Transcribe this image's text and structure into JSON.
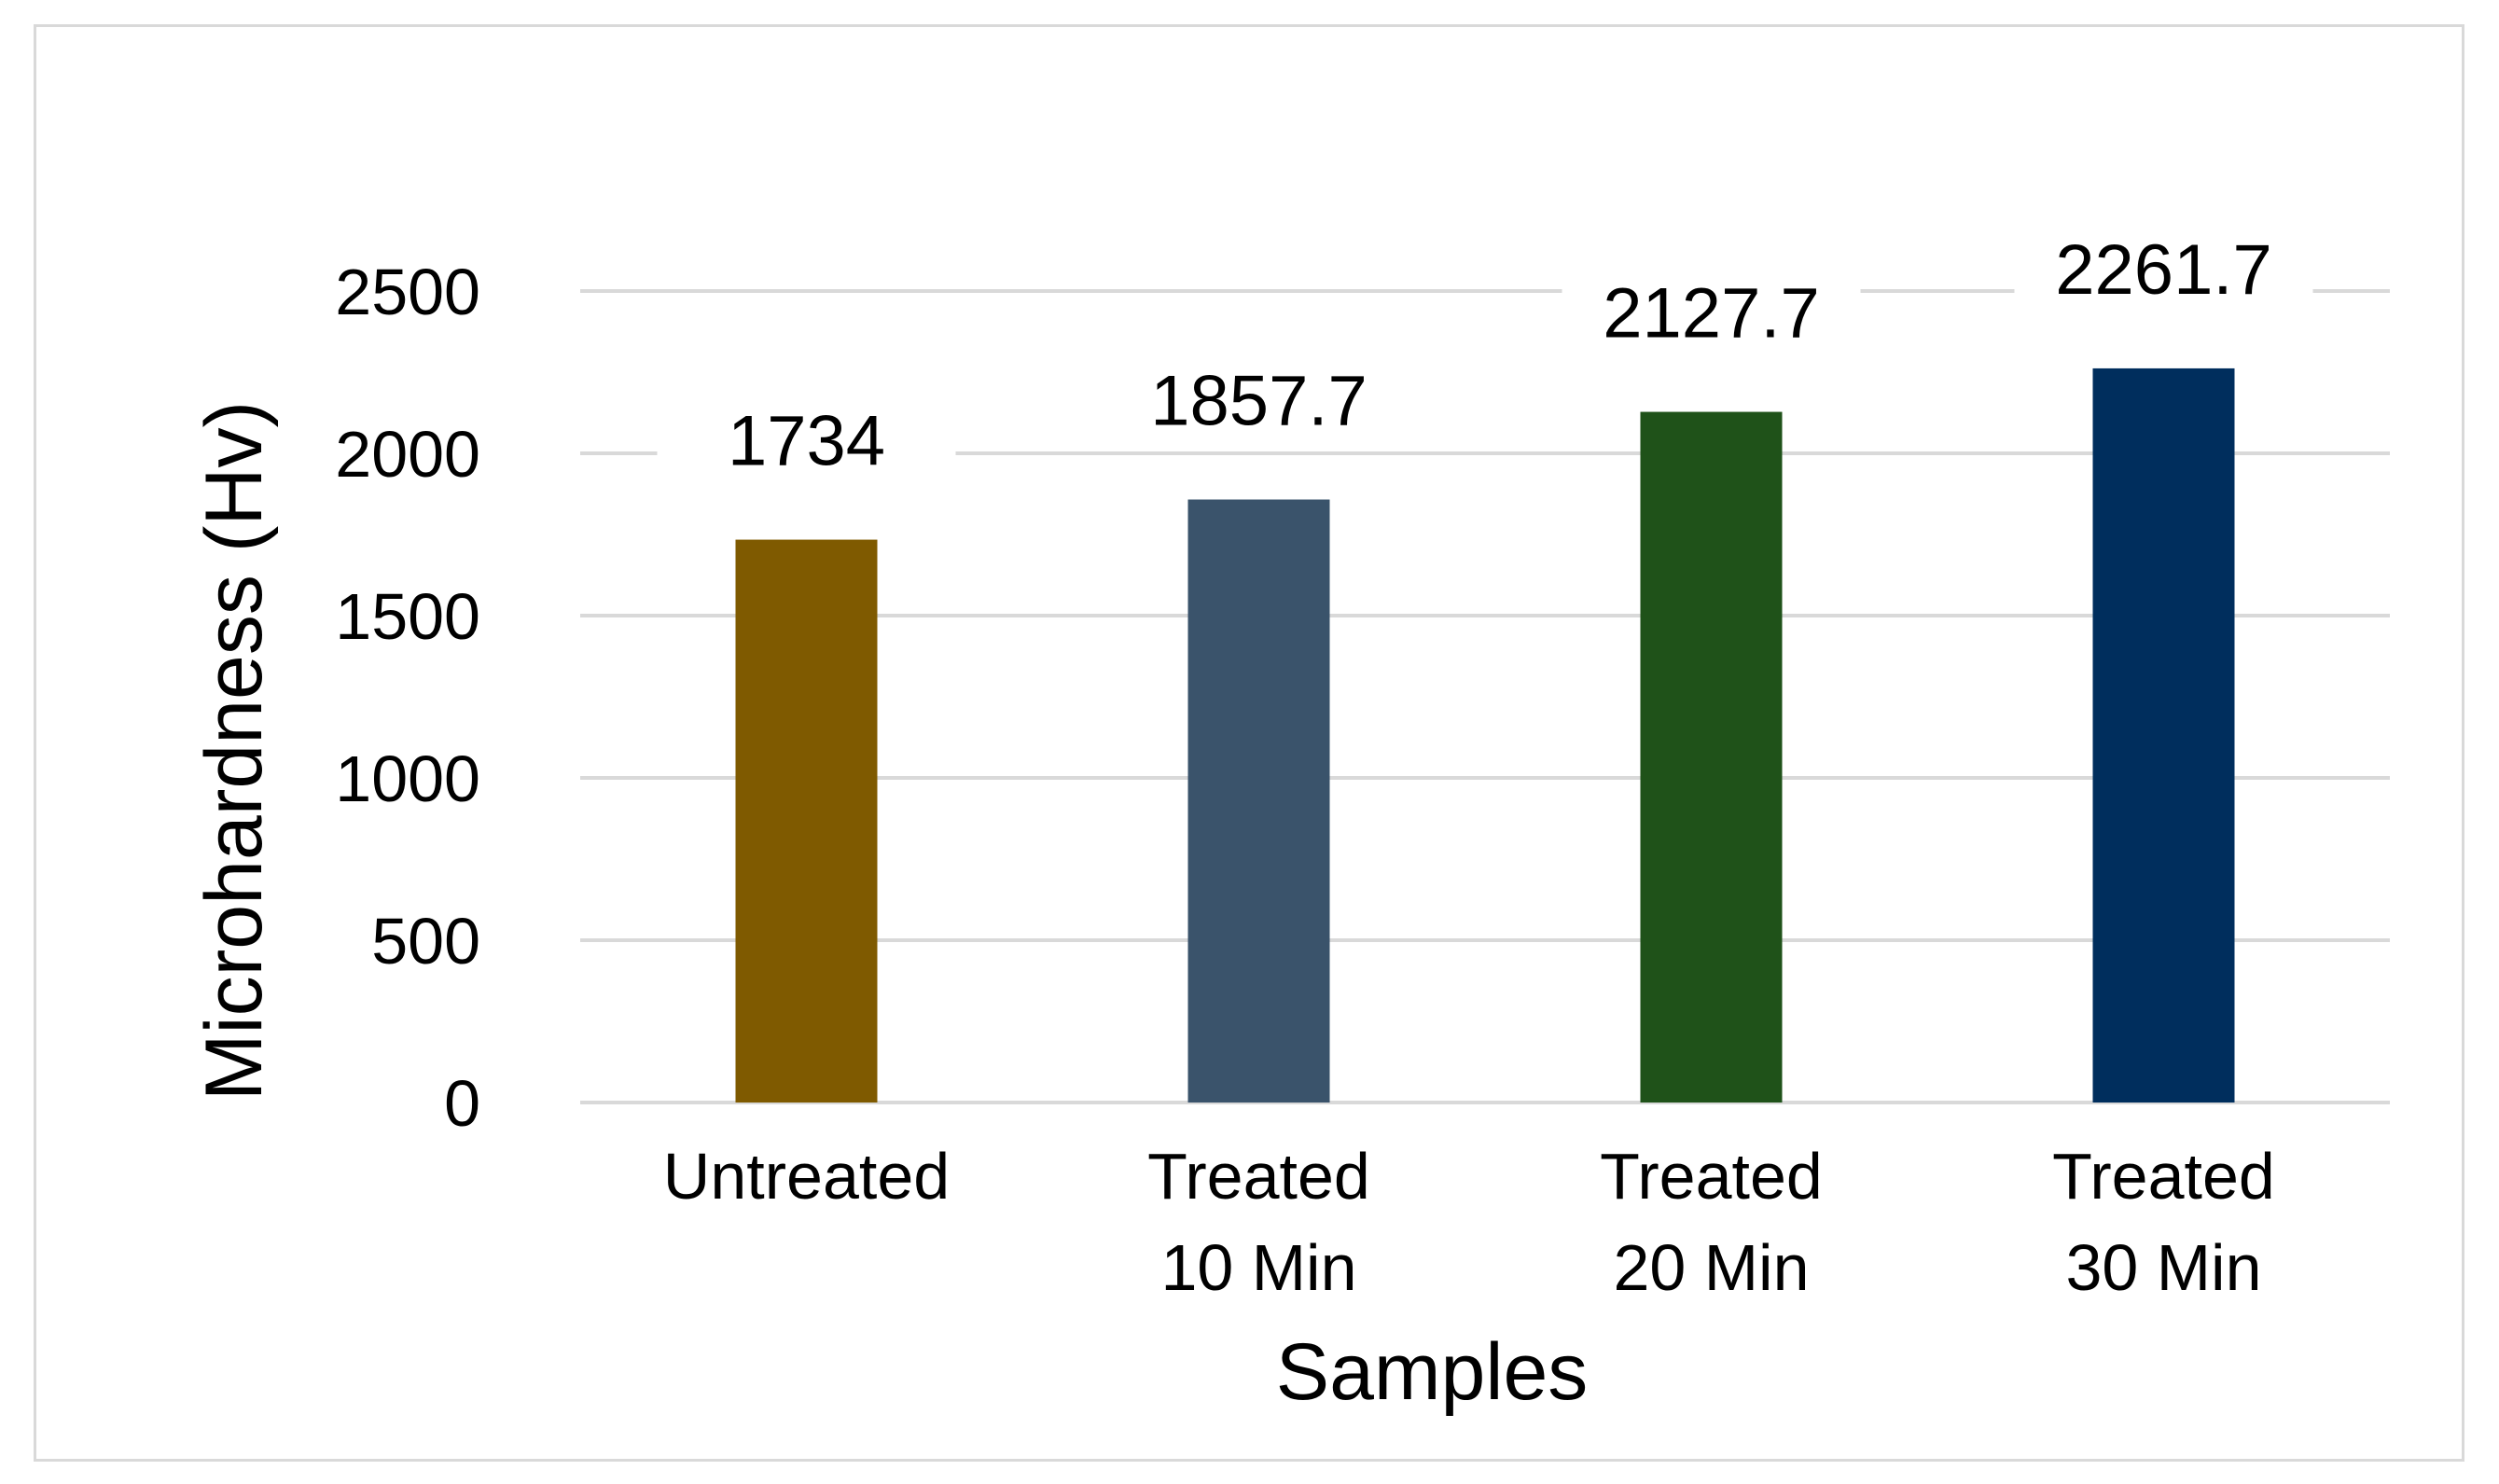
{
  "chart_data": {
    "type": "bar",
    "categories": [
      [
        "Untreated"
      ],
      [
        "Treated",
        "10 Min"
      ],
      [
        "Treated",
        "20 Min"
      ],
      [
        "Treated",
        "30 Min"
      ]
    ],
    "values": [
      1734,
      1857.7,
      2127.7,
      2261.7
    ],
    "data_labels": [
      "1734",
      "1857.7",
      "2127.7",
      "2261.7"
    ],
    "bar_colors": [
      "#7f5a00",
      "#3a536b",
      "#1f5219",
      "#002e5d"
    ],
    "xlabel": "Samples",
    "ylabel": "Microhardness (Hv)",
    "ylim": [
      0,
      2500
    ],
    "yticks": [
      0,
      500,
      1000,
      1500,
      2000,
      2500
    ],
    "grid": true,
    "gridline_color": "#d9d9d9"
  }
}
